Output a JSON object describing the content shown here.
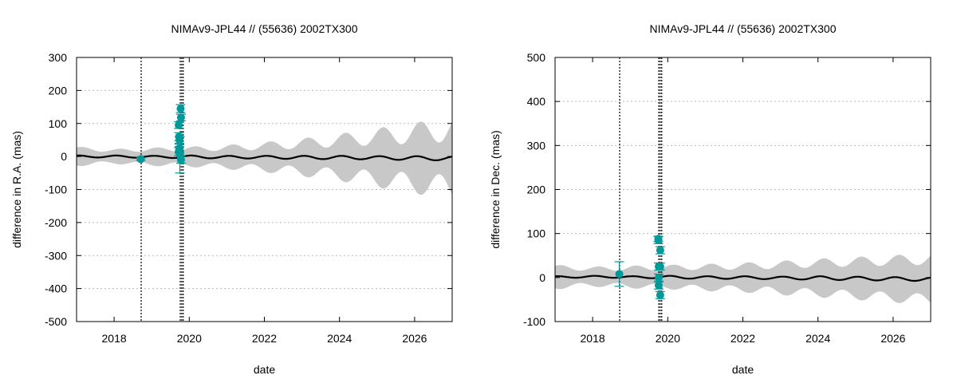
{
  "colors": {
    "band": "#c8c8c8",
    "prediction_line": "#000000",
    "observation": "#00999a",
    "grid": "#bbbbbb"
  },
  "chart_data": [
    {
      "type": "scatter",
      "title": "NIMAv9-JPL44 // (55636) 2002TX300",
      "xlabel": "date",
      "ylabel": "difference in R.A. (mas)",
      "xlim": [
        2017.0,
        2027.0
      ],
      "ylim": [
        -500,
        300
      ],
      "x_ticks": [
        2018,
        2020,
        2022,
        2024,
        2026
      ],
      "x_tick_labels": [
        "2018",
        "2020",
        "2022",
        "2024",
        "2026"
      ],
      "y_ticks": [
        -500,
        -400,
        -300,
        -200,
        -100,
        0,
        100,
        200,
        300
      ],
      "y_tick_labels": [
        "-500",
        "-400",
        "-300",
        "-200",
        "-100",
        "0",
        "100",
        "200",
        "300"
      ],
      "grid": "horizontal dashed",
      "vertical_markers": [
        2018.72,
        2019.76,
        2019.8,
        2019.84
      ],
      "uncertainty_band": {
        "x": [
          2017.0,
          2018.0,
          2019.0,
          2020.0,
          2021.0,
          2022.0,
          2023.0,
          2024.0,
          2025.0,
          2026.0,
          2027.0
        ],
        "halfwidth": [
          24,
          18,
          22,
          24,
          28,
          34,
          42,
          52,
          64,
          76,
          88
        ],
        "osc_amplitude": [
          6,
          5,
          6,
          7,
          9,
          12,
          16,
          20,
          26,
          32,
          38
        ]
      },
      "prediction": {
        "x": [
          2017.0,
          2018.0,
          2019.0,
          2020.0,
          2021.0,
          2022.0,
          2023.0,
          2024.0,
          2025.0,
          2026.0,
          2027.0
        ],
        "y": [
          0,
          0,
          -1,
          -1,
          -2,
          -2,
          -3,
          -3,
          -4,
          -5,
          -6
        ],
        "osc_amplitude": [
          3,
          3,
          3,
          4,
          4,
          4,
          5,
          5,
          5,
          6,
          6
        ]
      },
      "observations": [
        {
          "x": 2018.71,
          "y": -8,
          "err": 4
        },
        {
          "x": 2019.72,
          "y": 15,
          "err": 12
        },
        {
          "x": 2019.72,
          "y": 95,
          "err": 10
        },
        {
          "x": 2019.73,
          "y": 60,
          "err": 12
        },
        {
          "x": 2019.74,
          "y": 50,
          "err": 10
        },
        {
          "x": 2019.74,
          "y": 25,
          "err": 12
        },
        {
          "x": 2019.74,
          "y": 20,
          "err": 10
        },
        {
          "x": 2019.75,
          "y": 5,
          "err": 55
        },
        {
          "x": 2019.77,
          "y": 145,
          "err": 12
        },
        {
          "x": 2019.78,
          "y": 118,
          "err": 10
        },
        {
          "x": 2019.78,
          "y": -10,
          "err": 10
        }
      ]
    },
    {
      "type": "scatter",
      "title": "NIMAv9-JPL44 // (55636) 2002TX300",
      "xlabel": "date",
      "ylabel": "difference in Dec. (mas)",
      "xlim": [
        2017.0,
        2027.0
      ],
      "ylim": [
        -100,
        500
      ],
      "x_ticks": [
        2018,
        2020,
        2022,
        2024,
        2026
      ],
      "x_tick_labels": [
        "2018",
        "2020",
        "2022",
        "2024",
        "2026"
      ],
      "y_ticks": [
        -100,
        0,
        100,
        200,
        300,
        400,
        500
      ],
      "y_tick_labels": [
        "-100",
        "0",
        "100",
        "200",
        "300",
        "400",
        "500"
      ],
      "grid": "horizontal dashed",
      "vertical_markers": [
        2018.72,
        2019.76,
        2019.8,
        2019.84
      ],
      "uncertainty_band": {
        "x": [
          2017.0,
          2018.0,
          2019.0,
          2020.0,
          2021.0,
          2022.0,
          2023.0,
          2024.0,
          2025.0,
          2026.0,
          2027.0
        ],
        "halfwidth": [
          22,
          18,
          20,
          22,
          24,
          26,
          30,
          34,
          38,
          42,
          46
        ],
        "osc_amplitude": [
          6,
          5,
          6,
          6,
          7,
          8,
          9,
          10,
          11,
          12,
          13
        ]
      },
      "prediction": {
        "x": [
          2017.0,
          2018.0,
          2019.0,
          2020.0,
          2021.0,
          2022.0,
          2023.0,
          2024.0,
          2025.0,
          2026.0,
          2027.0
        ],
        "y": [
          1,
          2,
          1,
          1,
          0,
          0,
          -1,
          -1,
          -2,
          -3,
          -4
        ],
        "osc_amplitude": [
          2,
          2,
          2,
          3,
          3,
          3,
          3,
          4,
          4,
          4,
          4
        ]
      },
      "observations": [
        {
          "x": 2018.71,
          "y": 8,
          "err": 28
        },
        {
          "x": 2019.75,
          "y": 85,
          "err": 8
        },
        {
          "x": 2019.75,
          "y": 88,
          "err": 6
        },
        {
          "x": 2019.76,
          "y": 25,
          "err": 8
        },
        {
          "x": 2019.76,
          "y": 0,
          "err": 8
        },
        {
          "x": 2019.76,
          "y": -18,
          "err": 8
        },
        {
          "x": 2019.8,
          "y": 62,
          "err": 8
        },
        {
          "x": 2019.8,
          "y": 25,
          "err": 8
        },
        {
          "x": 2019.8,
          "y": -40,
          "err": 8
        }
      ]
    }
  ]
}
